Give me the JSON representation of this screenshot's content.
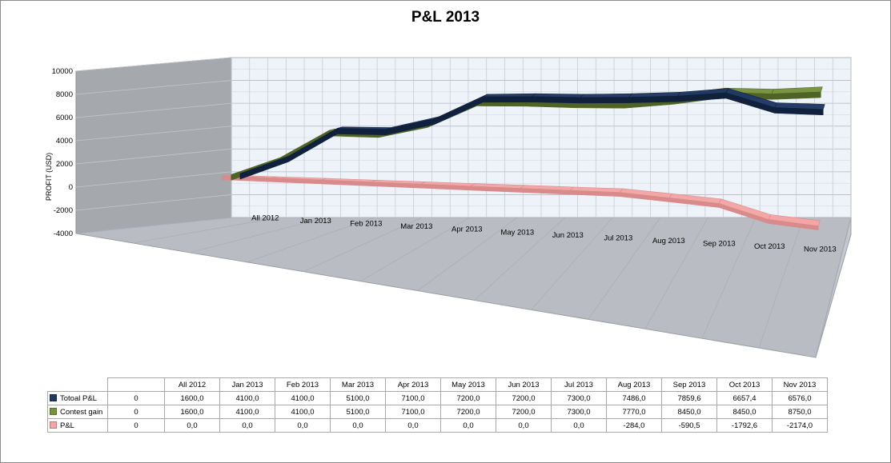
{
  "chart_data": {
    "type": "line",
    "title": "P&L 2013",
    "ylabel": "PROFIT  (USD)",
    "ylim": [
      -4000,
      10000
    ],
    "yticks": [
      "10000",
      "8000",
      "6000",
      "4000",
      "2000",
      "0",
      "-2000",
      "-4000"
    ],
    "grid": true,
    "categories": [
      "0",
      "All 2012",
      "Jan 2013",
      "Feb 2013",
      "Mar 2013",
      "Apr 2013",
      "May 2013",
      "Jun 2013",
      "Jul 2013",
      "Aug 2013",
      "Sep 2013",
      "Oct 2013",
      "Nov 2013"
    ],
    "axis_labels": [
      "All 2012",
      "Jan 2013",
      "Feb 2013",
      "Mar 2013",
      "Apr 2013",
      "May 2013",
      "Jun 2013",
      "Jul 2013",
      "Aug 2013",
      "Sep 2013",
      "Oct 2013",
      "Nov 2013"
    ],
    "series": [
      {
        "name": "Totoal P&L",
        "color": "#1f3864",
        "values": [
          0,
          1600,
          4100,
          4100,
          5100,
          7100,
          7200,
          7200,
          7300,
          7486,
          7859.6,
          6657.4,
          6576
        ],
        "labels": [
          "0",
          "1600,0",
          "4100,0",
          "4100,0",
          "5100,0",
          "7100,0",
          "7200,0",
          "7200,0",
          "7300,0",
          "7486,0",
          "7859,6",
          "6657,4",
          "6576,0"
        ]
      },
      {
        "name": "Contest gain",
        "color": "#77933c",
        "values": [
          0,
          1600,
          4100,
          4100,
          5100,
          7100,
          7200,
          7200,
          7300,
          7770,
          8450,
          8450,
          8750
        ],
        "labels": [
          "0",
          "1600,0",
          "4100,0",
          "4100,0",
          "5100,0",
          "7100,0",
          "7200,0",
          "7200,0",
          "7300,0",
          "7770,0",
          "8450,0",
          "8450,0",
          "8750,0"
        ]
      },
      {
        "name": "P&L",
        "color": "#f4a6a6",
        "values": [
          0,
          0,
          0,
          0,
          0,
          0,
          0,
          0,
          0,
          -284,
          -590.5,
          -1792.6,
          -2174
        ],
        "labels": [
          "0",
          "0,0",
          "0,0",
          "0,0",
          "0,0",
          "0,0",
          "0,0",
          "0,0",
          "0,0",
          "-284,0",
          "-590,5",
          "-1792,6",
          "-2174,0"
        ]
      }
    ]
  }
}
